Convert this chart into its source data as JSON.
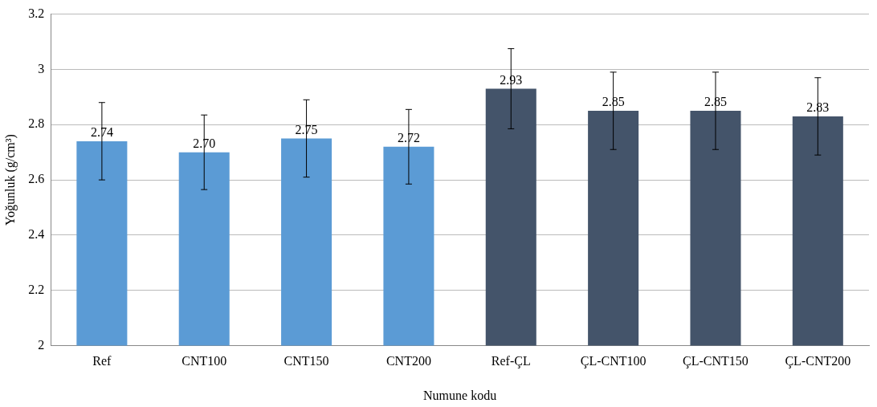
{
  "chart_data": {
    "type": "bar",
    "xlabel": "Numune kodu",
    "ylabel": "Yoğunluk (g/cm³)",
    "categories": [
      "Ref",
      "CNT100",
      "CNT150",
      "CNT200",
      "Ref-ÇL",
      "ÇL-CNT100",
      "ÇL-CNT150",
      "ÇL-CNT200"
    ],
    "values": [
      2.74,
      2.7,
      2.75,
      2.72,
      2.93,
      2.85,
      2.85,
      2.83
    ],
    "colors": [
      "#5b9bd5",
      "#5b9bd5",
      "#5b9bd5",
      "#5b9bd5",
      "#44546a",
      "#44546a",
      "#44546a",
      "#44546a"
    ],
    "errors": [
      0.14,
      0.135,
      0.14,
      0.135,
      0.145,
      0.14,
      0.14,
      0.14
    ],
    "value_labels": [
      "2.74",
      "2.70",
      "2.75",
      "2.72",
      "2.93",
      "2.85",
      "2.85",
      "2.83"
    ],
    "ylim": [
      2,
      3.2
    ],
    "yticks": [
      2,
      2.2,
      2.4,
      2.6,
      2.8,
      3,
      3.2
    ],
    "grid": "y",
    "legend": false
  }
}
